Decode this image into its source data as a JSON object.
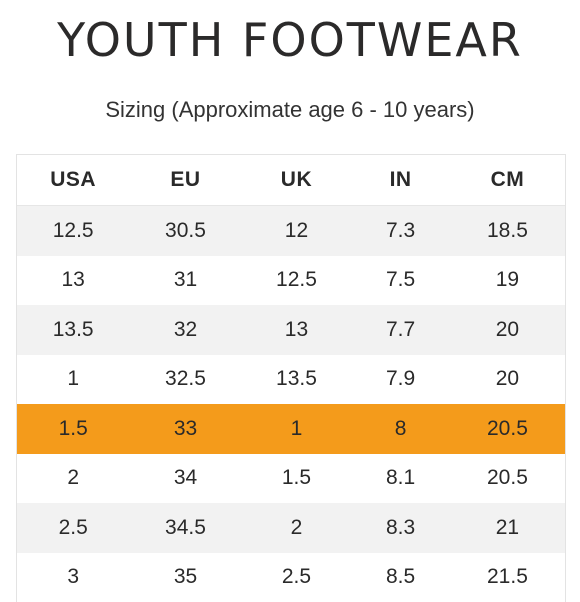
{
  "title": "YOUTH FOOTWEAR",
  "subtitle": "Sizing (Approximate age 6 - 10 years)",
  "colors": {
    "highlight": "#f49b1b",
    "stripe": "#f2f2f2",
    "text": "#2a2a2a"
  },
  "table": {
    "headers": [
      "USA",
      "EU",
      "UK",
      "IN",
      "CM"
    ],
    "rows": [
      [
        "12.5",
        "30.5",
        "12",
        "7.3",
        "18.5"
      ],
      [
        "13",
        "31",
        "12.5",
        "7.5",
        "19"
      ],
      [
        "13.5",
        "32",
        "13",
        "7.7",
        "20"
      ],
      [
        "1",
        "32.5",
        "13.5",
        "7.9",
        "20"
      ],
      [
        "1.5",
        "33",
        "1",
        "8",
        "20.5"
      ],
      [
        "2",
        "34",
        "1.5",
        "8.1",
        "20.5"
      ],
      [
        "2.5",
        "34.5",
        "2",
        "8.3",
        "21"
      ],
      [
        "3",
        "35",
        "2.5",
        "8.5",
        "21.5"
      ]
    ],
    "highlighted_row": 4
  }
}
